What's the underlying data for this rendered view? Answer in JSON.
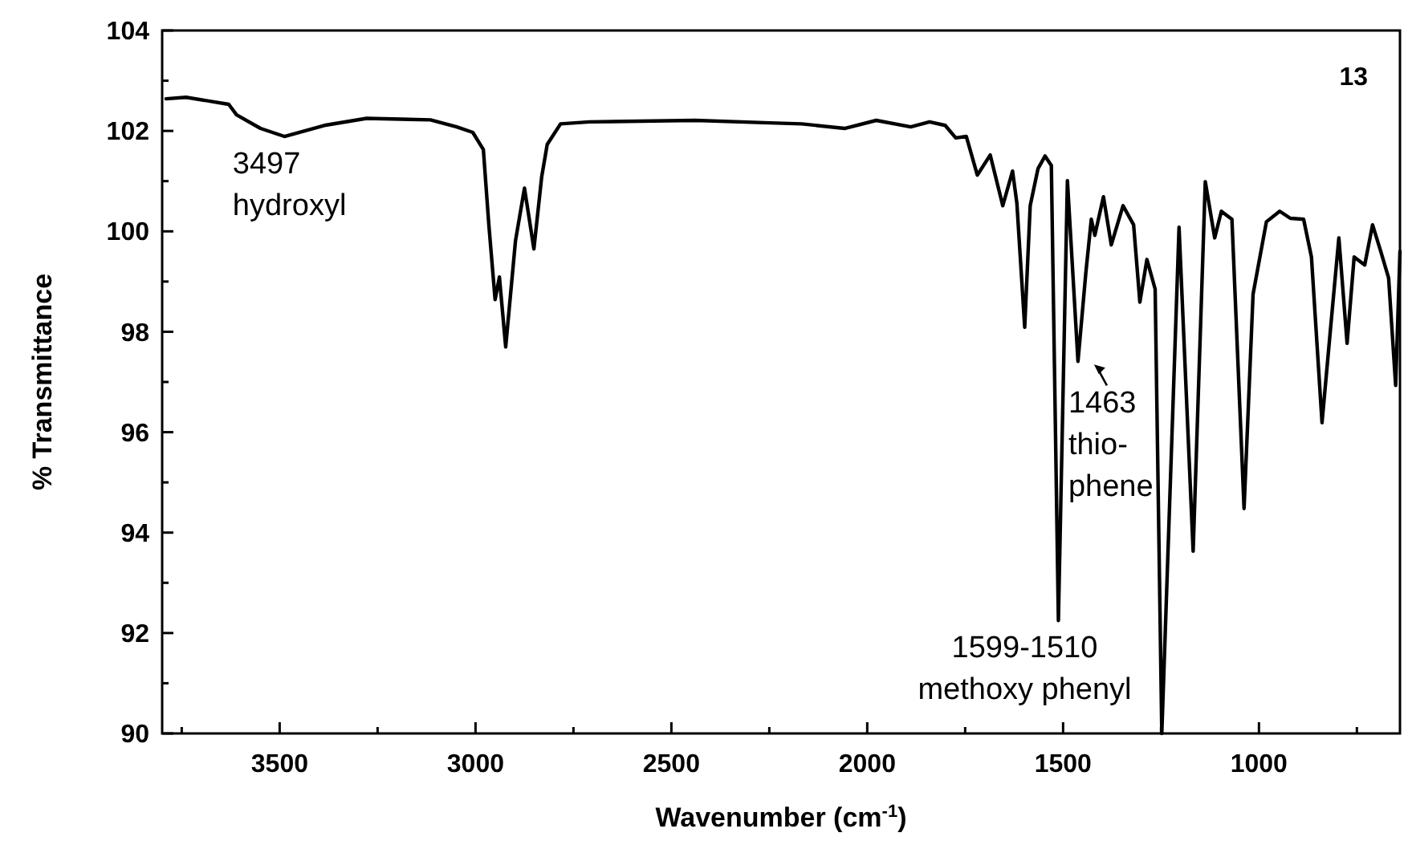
{
  "chart_data": {
    "type": "line",
    "title": "13",
    "xlabel": "Wavenumber (cm$^{-1}$)",
    "ylabel": "% Transmittance",
    "xlim": [
      3800,
      640
    ],
    "ylim": [
      90,
      104
    ],
    "xticks": [
      {
        "value": 3750,
        "label": null
      },
      3500,
      {
        "value": 3250,
        "label": null
      },
      3000,
      {
        "value": 2750,
        "label": null
      },
      2500,
      {
        "value": 2250,
        "label": null
      },
      2000,
      {
        "value": 1750,
        "label": null
      },
      1500,
      {
        "value": 1250,
        "label": null
      },
      1000,
      {
        "value": 750,
        "label": null
      }
    ],
    "yticks": [
      90,
      {
        "value": 91,
        "label": null
      },
      92,
      {
        "value": 93,
        "label": null
      },
      94,
      {
        "value": 95,
        "label": null
      },
      96,
      {
        "value": 97,
        "label": null
      },
      98,
      {
        "value": 99,
        "label": null
      },
      100,
      {
        "value": 101,
        "label": null
      },
      102,
      {
        "value": 103,
        "label": null
      },
      104
    ],
    "grid": false,
    "marker": "none",
    "line_style": "solid",
    "series": [
      {
        "color": "#000000",
        "x": [
          3790,
          3739,
          3630,
          3610,
          3549,
          3488,
          3386,
          3278,
          3115,
          3048,
          3007,
          2980,
          2966,
          2950,
          2939,
          2923,
          2898,
          2875,
          2851,
          2831,
          2817,
          2783,
          2709,
          2439,
          2248,
          2167,
          2058,
          1977,
          1889,
          1841,
          1801,
          1774,
          1747,
          1719,
          1686,
          1654,
          1629,
          1618,
          1598,
          1584,
          1564,
          1546,
          1530,
          1512,
          1489,
          1462,
          1442,
          1428,
          1419,
          1397,
          1377,
          1347,
          1320,
          1304,
          1286,
          1265,
          1248,
          1204,
          1168,
          1137,
          1113,
          1096,
          1069,
          1038,
          1015,
          981,
          947,
          920,
          886,
          866,
          839,
          818,
          796,
          775,
          757,
          730,
          710,
          689,
          669,
          651,
          640
        ],
        "values": [
          102.64,
          102.67,
          102.53,
          102.32,
          102.05,
          101.89,
          102.11,
          102.25,
          102.22,
          102.08,
          101.97,
          101.63,
          100.13,
          98.64,
          99.09,
          97.7,
          99.81,
          100.86,
          99.65,
          101.09,
          101.73,
          102.14,
          102.18,
          102.21,
          102.16,
          102.14,
          102.05,
          102.21,
          102.08,
          102.18,
          102.11,
          101.86,
          101.89,
          101.12,
          101.52,
          100.51,
          101.2,
          100.56,
          98.09,
          100.51,
          101.25,
          101.5,
          101.31,
          92.25,
          101.01,
          97.41,
          99.17,
          100.24,
          99.92,
          100.69,
          99.73,
          100.51,
          100.13,
          98.59,
          99.44,
          98.85,
          90,
          100.08,
          93.63,
          100.99,
          99.87,
          100.4,
          100.24,
          94.48,
          98.75,
          100.19,
          100.4,
          100.26,
          100.24,
          99.49,
          96.19,
          98,
          99.87,
          97.77,
          99.49,
          99.33,
          100.13,
          99.6,
          99.07,
          96.93,
          99.6
        ]
      }
    ],
    "annotations": [
      {
        "text": "3497\nhydroxyl",
        "x": 3497,
        "y": 101.89
      },
      {
        "text": "1463\nthio-\nphene",
        "x": 1462,
        "y": 97.41
      },
      {
        "text": "1599-1510\nmethoxy phenyl",
        "x": 1512,
        "y": 92.25
      }
    ]
  }
}
